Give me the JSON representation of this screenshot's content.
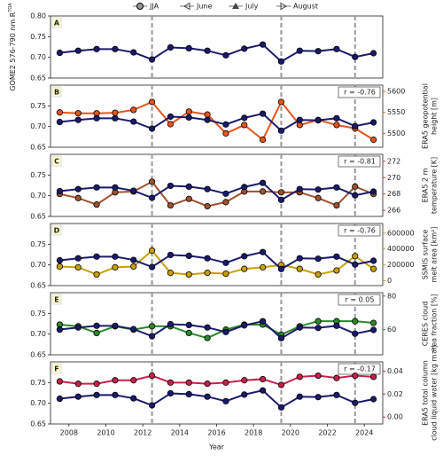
{
  "chart_data": [
    {
      "type": "line",
      "letter": "A",
      "legend": [
        "JJA",
        "June",
        "July",
        "August"
      ],
      "ylabel": "GOME2 576-790 nm R",
      "ylabel_sup": "TOA",
      "x": [
        2007.5,
        2008.5,
        2009.5,
        2010.5,
        2011.5,
        2012.5,
        2013.5,
        2014.5,
        2015.5,
        2016.5,
        2017.5,
        2018.5,
        2019.5,
        2020.5,
        2021.5,
        2022.5,
        2023.5,
        2024.5
      ],
      "xlim": [
        2007,
        2025
      ],
      "ylim": [
        0.65,
        0.8
      ],
      "yticks": [
        0.65,
        {
          "value": 0.7,
          "label": "0.70"
        },
        0.75,
        {
          "value": 0.8,
          "label": "0.80"
        }
      ],
      "events": [
        2012.5,
        2019.5,
        2023.5
      ],
      "series": [
        {
          "name": "JJA",
          "color": "#1a1a6e",
          "values": [
            0.711,
            0.716,
            0.72,
            0.72,
            0.712,
            0.695,
            0.724,
            0.722,
            0.716,
            0.705,
            0.721,
            0.731,
            0.69,
            0.716,
            0.715,
            0.72,
            0.701,
            0.71
          ]
        }
      ]
    },
    {
      "type": "line",
      "letter": "B",
      "r": "r = -0.76",
      "y2label": [
        "ERA5 geopotential",
        "height [m]"
      ],
      "x": [
        2007.5,
        2008.5,
        2009.5,
        2010.5,
        2011.5,
        2012.5,
        2013.5,
        2014.5,
        2015.5,
        2016.5,
        2017.5,
        2018.5,
        2019.5,
        2020.5,
        2021.5,
        2022.5,
        2023.5,
        2024.5
      ],
      "xlim": [
        2007,
        2025
      ],
      "ylim": [
        0.65,
        0.8
      ],
      "y2lim": [
        5467,
        5615
      ],
      "yticks": [
        0.65,
        {
          "value": 0.7,
          "label": "0.70"
        },
        0.75
      ],
      "y2ticks": [
        5500,
        5550,
        5600
      ],
      "events": [
        2012.5,
        2019.5,
        2023.5
      ],
      "series": [
        {
          "name": "JJA",
          "color": "#1a1a6e",
          "values": [
            0.711,
            0.716,
            0.72,
            0.72,
            0.712,
            0.695,
            0.724,
            0.722,
            0.716,
            0.705,
            0.721,
            0.731,
            0.69,
            0.716,
            0.715,
            0.72,
            0.701,
            0.71
          ]
        },
        {
          "color": "#e8541c",
          "axis": "y2",
          "values": [
            5550,
            5548,
            5548,
            5549,
            5556,
            5575,
            5522,
            5552,
            5545,
            5500,
            5520,
            5485,
            5575,
            5520,
            5532,
            5520,
            5512,
            5485
          ]
        }
      ]
    },
    {
      "type": "line",
      "letter": "C",
      "r": "r = -0.81",
      "y2label": [
        "ERA5 2 m",
        "temperature [K]"
      ],
      "x": [
        2007.5,
        2008.5,
        2009.5,
        2010.5,
        2011.5,
        2012.5,
        2013.5,
        2014.5,
        2015.5,
        2016.5,
        2017.5,
        2018.5,
        2019.5,
        2020.5,
        2021.5,
        2022.5,
        2023.5,
        2024.5
      ],
      "xlim": [
        2007,
        2025
      ],
      "ylim": [
        0.65,
        0.8
      ],
      "y2lim": [
        265.25,
        272.85
      ],
      "yticks": [
        0.65,
        {
          "value": 0.7,
          "label": "0.70"
        },
        0.75
      ],
      "y2ticks": [
        266,
        268,
        270,
        272
      ],
      "events": [
        2012.5,
        2019.5,
        2023.5
      ],
      "series": [
        {
          "name": "JJA",
          "color": "#1a1a6e",
          "values": [
            0.711,
            0.716,
            0.72,
            0.72,
            0.712,
            0.695,
            0.724,
            0.722,
            0.716,
            0.705,
            0.721,
            0.731,
            0.69,
            0.716,
            0.715,
            0.72,
            0.701,
            0.71
          ]
        },
        {
          "color": "#a0522d",
          "axis": "y2",
          "values": [
            268.0,
            267.5,
            266.7,
            268.2,
            268.3,
            269.5,
            266.6,
            267.4,
            266.5,
            267.0,
            268.3,
            268.3,
            268.2,
            268.2,
            267.5,
            266.6,
            268.9,
            268.0
          ]
        }
      ]
    },
    {
      "type": "line",
      "letter": "D",
      "r": "r = -0.76",
      "y2label": [
        "SSMIS surface",
        "melt area [km²]"
      ],
      "x": [
        2007.5,
        2008.5,
        2009.5,
        2010.5,
        2011.5,
        2012.5,
        2013.5,
        2014.5,
        2015.5,
        2016.5,
        2017.5,
        2018.5,
        2019.5,
        2020.5,
        2021.5,
        2022.5,
        2023.5,
        2024.5
      ],
      "xlim": [
        2007,
        2025
      ],
      "ylim": [
        0.65,
        0.8
      ],
      "y2lim": [
        -60000,
        720000
      ],
      "yticks": [
        0.65,
        {
          "value": 0.7,
          "label": "0.70"
        },
        0.75
      ],
      "y2ticks": [
        0,
        200000,
        400000,
        600000
      ],
      "events": [
        2012.5,
        2019.5,
        2023.5
      ],
      "series": [
        {
          "name": "JJA",
          "color": "#1a1a6e",
          "values": [
            0.711,
            0.716,
            0.72,
            0.72,
            0.712,
            0.695,
            0.724,
            0.722,
            0.716,
            0.705,
            0.721,
            0.731,
            0.69,
            0.716,
            0.715,
            0.72,
            0.701,
            0.71
          ]
        },
        {
          "color": "#c8a000",
          "axis": "y2",
          "values": [
            180000,
            170000,
            80000,
            170000,
            180000,
            380000,
            100000,
            80000,
            100000,
            90000,
            150000,
            170000,
            200000,
            150000,
            80000,
            130000,
            310000,
            150000
          ]
        }
      ]
    },
    {
      "type": "line",
      "letter": "E",
      "r": "r = 0.05",
      "y2label": [
        "CERES cloud",
        "area fraction [%]"
      ],
      "x": [
        2007.5,
        2008.5,
        2009.5,
        2010.5,
        2011.5,
        2012.5,
        2013.5,
        2014.5,
        2015.5,
        2016.5,
        2017.5,
        2018.5,
        2019.5,
        2020.5,
        2021.5,
        2022.5,
        2023.5,
        2024.5
      ],
      "xlim": [
        2007,
        2025
      ],
      "ylim": [
        0.65,
        0.8
      ],
      "y2lim": [
        45,
        82
      ],
      "yticks": [
        0.65,
        {
          "value": 0.7,
          "label": "0.70"
        },
        0.75
      ],
      "y2ticks": [
        60,
        80
      ],
      "events": [
        2012.5,
        2019.5,
        2023.5
      ],
      "series": [
        {
          "name": "JJA",
          "color": "#1a1a6e",
          "values": [
            0.711,
            0.716,
            0.72,
            0.72,
            0.712,
            0.695,
            0.724,
            0.722,
            0.716,
            0.705,
            0.721,
            0.731,
            0.69,
            0.716,
            0.715,
            0.72,
            0.701,
            0.71
          ]
        },
        {
          "color": "#2a8a2a",
          "axis": "y2",
          "values": [
            63,
            62,
            58,
            62,
            60,
            62,
            62,
            58,
            55,
            60,
            63,
            63,
            57,
            62,
            65,
            65,
            65,
            64
          ]
        }
      ]
    },
    {
      "type": "line",
      "letter": "F",
      "r": "r = -0.17",
      "y2label": [
        "ERA5 total column",
        "cloud liquid water [kg m⁻²]"
      ],
      "xlabel": "Year",
      "xticks": [
        2008,
        2010,
        2012,
        2014,
        2016,
        2018,
        2020,
        2022,
        2024
      ],
      "x": [
        2007.5,
        2008.5,
        2009.5,
        2010.5,
        2011.5,
        2012.5,
        2013.5,
        2014.5,
        2015.5,
        2016.5,
        2017.5,
        2018.5,
        2019.5,
        2020.5,
        2021.5,
        2022.5,
        2023.5,
        2024.5
      ],
      "xlim": [
        2007,
        2025
      ],
      "ylim": [
        0.65,
        0.8
      ],
      "y2lim": [
        -0.006,
        0.048
      ],
      "yticks": [
        0.65,
        {
          "value": 0.7,
          "label": "0.70"
        },
        0.75
      ],
      "y2ticks": [
        {
          "value": 0,
          "label": "0.00"
        },
        0.02,
        0.04
      ],
      "events": [
        2012.5,
        2019.5,
        2023.5
      ],
      "series": [
        {
          "name": "JJA",
          "color": "#1a1a6e",
          "values": [
            0.711,
            0.716,
            0.72,
            0.72,
            0.712,
            0.695,
            0.724,
            0.722,
            0.716,
            0.705,
            0.721,
            0.731,
            0.69,
            0.716,
            0.715,
            0.72,
            0.701,
            0.71
          ]
        },
        {
          "color": "#c8204a",
          "axis": "y2",
          "values": [
            0.031,
            0.029,
            0.029,
            0.032,
            0.032,
            0.036,
            0.03,
            0.03,
            0.029,
            0.03,
            0.032,
            0.033,
            0.028,
            0.035,
            0.036,
            0.034,
            0.036,
            0.035
          ]
        }
      ]
    }
  ]
}
